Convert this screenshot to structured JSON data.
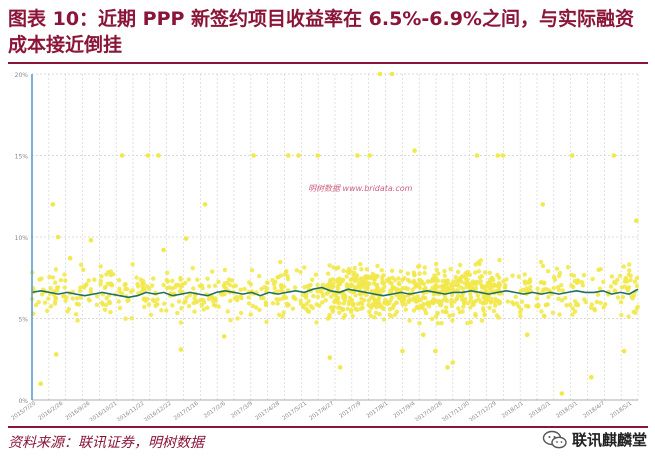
{
  "title": "图表 10：近期 PPP 新签约项目收益率在 6.5%-6.9%之间，与实际融资成本接近倒挂",
  "source": "资料来源：联讯证券，明树数据",
  "brand": "联讯麒麟堂",
  "watermark": "明树数据 www.bridata.com",
  "chart_data": {
    "type": "scatter",
    "title": "",
    "xlabel": "",
    "ylabel": "",
    "ylim": [
      0,
      0.2
    ],
    "y_ticks": [
      "0%",
      "5%",
      "10%",
      "15%",
      "20%"
    ],
    "x_tick_labels": [
      "2015/7/20",
      "2016/2/26",
      "2016/9/26",
      "2016/10/21",
      "2016/11/22",
      "2016/12/22",
      "2017/1/16",
      "2017/2/6",
      "2017/3/9",
      "2017/4/28",
      "2017/5/21",
      "2017/6/27",
      "2017/7/9",
      "2017/8/1",
      "2017/9/4",
      "2017/10/26",
      "2017/11/30",
      "2017/12/29",
      "2018/1/1",
      "2018/2/1",
      "2018/3/1",
      "2018/4/7",
      "2018/5/1"
    ],
    "grid": true,
    "colors": {
      "points": "#f2e84a",
      "trend": "#1f6f5c",
      "axis": "#5b9bd5",
      "grid": "#cfcfcf"
    },
    "outliers": [
      {
        "x": 0.5,
        "y": 0.01
      },
      {
        "x": 1.2,
        "y": 0.12
      },
      {
        "x": 1.5,
        "y": 0.1
      },
      {
        "x": 1.4,
        "y": 0.028
      },
      {
        "x": 2.2,
        "y": 0.087
      },
      {
        "x": 3.4,
        "y": 0.098
      },
      {
        "x": 5.2,
        "y": 0.15
      },
      {
        "x": 6.7,
        "y": 0.15
      },
      {
        "x": 7.3,
        "y": 0.15
      },
      {
        "x": 7.6,
        "y": 0.092
      },
      {
        "x": 8.6,
        "y": 0.031
      },
      {
        "x": 8.9,
        "y": 0.099
      },
      {
        "x": 10.0,
        "y": 0.12
      },
      {
        "x": 11.1,
        "y": 0.039
      },
      {
        "x": 12.8,
        "y": 0.15
      },
      {
        "x": 14.8,
        "y": 0.15
      },
      {
        "x": 15.4,
        "y": 0.15
      },
      {
        "x": 16.5,
        "y": 0.15
      },
      {
        "x": 17.2,
        "y": 0.026
      },
      {
        "x": 17.8,
        "y": 0.02
      },
      {
        "x": 18.8,
        "y": 0.15
      },
      {
        "x": 19.5,
        "y": 0.15
      },
      {
        "x": 20.1,
        "y": 0.2
      },
      {
        "x": 20.8,
        "y": 0.2
      },
      {
        "x": 21.4,
        "y": 0.03
      },
      {
        "x": 22.1,
        "y": 0.153
      },
      {
        "x": 22.6,
        "y": 0.04
      },
      {
        "x": 23.3,
        "y": 0.03
      },
      {
        "x": 24.3,
        "y": 0.023
      },
      {
        "x": 25.7,
        "y": 0.15
      },
      {
        "x": 26.9,
        "y": 0.15
      },
      {
        "x": 27.2,
        "y": 0.15
      },
      {
        "x": 28.6,
        "y": 0.04
      },
      {
        "x": 29.5,
        "y": 0.12
      },
      {
        "x": 31.2,
        "y": 0.15
      },
      {
        "x": 32.3,
        "y": 0.014
      },
      {
        "x": 33.6,
        "y": 0.15
      },
      {
        "x": 34.2,
        "y": 0.03
      },
      {
        "x": 34.9,
        "y": 0.11
      },
      {
        "x": 24.0,
        "y": 0.02
      },
      {
        "x": 30.6,
        "y": 0.004
      }
    ],
    "trend": [
      0.066,
      0.067,
      0.066,
      0.065,
      0.066,
      0.065,
      0.064,
      0.065,
      0.066,
      0.065,
      0.064,
      0.063,
      0.064,
      0.066,
      0.065,
      0.066,
      0.064,
      0.065,
      0.066,
      0.065,
      0.064,
      0.066,
      0.067,
      0.066,
      0.065,
      0.066,
      0.064,
      0.066,
      0.065,
      0.066,
      0.067,
      0.066,
      0.068,
      0.069,
      0.067,
      0.066,
      0.068,
      0.067,
      0.066,
      0.065,
      0.064,
      0.065,
      0.066,
      0.065,
      0.066,
      0.067,
      0.066,
      0.065,
      0.066,
      0.066,
      0.067,
      0.066,
      0.065,
      0.066,
      0.067,
      0.066,
      0.065,
      0.066,
      0.065,
      0.066,
      0.065,
      0.066,
      0.067,
      0.066,
      0.066,
      0.067,
      0.065,
      0.066,
      0.065,
      0.068
    ]
  }
}
